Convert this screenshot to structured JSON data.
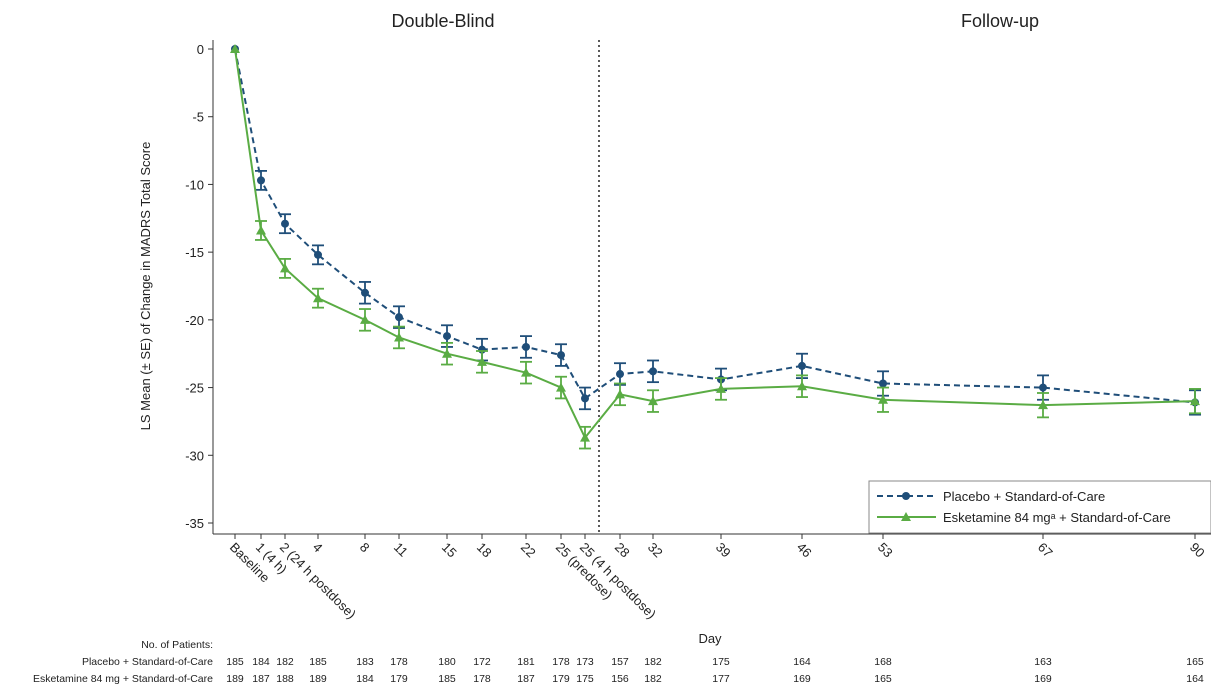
{
  "chart_data": {
    "type": "line",
    "phases": [
      "Double-Blind",
      "Follow-up"
    ],
    "ylabel": "LS Mean (± SE) of Change in MADRS Total Score",
    "xlabel": "Day",
    "ylim": [
      -35,
      0
    ],
    "yticks": [
      0,
      -5,
      -10,
      -15,
      -20,
      -25,
      -30,
      -35
    ],
    "x_ticks": [
      {
        "day": 0,
        "label": "Baseline"
      },
      {
        "day": 1,
        "label": "1 (4 h)"
      },
      {
        "day": 2,
        "label": "2 (24 h postdose)"
      },
      {
        "day": 4,
        "label": "4"
      },
      {
        "day": 8,
        "label": "8"
      },
      {
        "day": 11,
        "label": "11"
      },
      {
        "day": 15,
        "label": "15"
      },
      {
        "day": 18,
        "label": "18"
      },
      {
        "day": 22,
        "label": "22"
      },
      {
        "day": 25,
        "label": "25 (predose)"
      },
      {
        "day": 25.5,
        "label": "25 (4 h postdose)"
      },
      {
        "day": 28,
        "label": "28"
      },
      {
        "day": 32,
        "label": "32"
      },
      {
        "day": 39,
        "label": "39"
      },
      {
        "day": 46,
        "label": "46"
      },
      {
        "day": 53,
        "label": "53"
      },
      {
        "day": 67,
        "label": "67"
      },
      {
        "day": 90,
        "label": "90"
      }
    ],
    "phase_divider_day": 26.5,
    "series": [
      {
        "name": "Placebo + Standard-of-Care",
        "color": "#1f4e79",
        "marker": "circle",
        "dash": true,
        "points": [
          {
            "day": 0,
            "y": 0.0,
            "se": 0
          },
          {
            "day": 1,
            "y": -9.7,
            "se": 0.7
          },
          {
            "day": 2,
            "y": -12.9,
            "se": 0.7
          },
          {
            "day": 4,
            "y": -15.2,
            "se": 0.7
          },
          {
            "day": 8,
            "y": -18.0,
            "se": 0.8
          },
          {
            "day": 11,
            "y": -19.8,
            "se": 0.8
          },
          {
            "day": 15,
            "y": -21.2,
            "se": 0.8
          },
          {
            "day": 18,
            "y": -22.2,
            "se": 0.8
          },
          {
            "day": 22,
            "y": -22.0,
            "se": 0.8
          },
          {
            "day": 25,
            "y": -22.6,
            "se": 0.8
          },
          {
            "day": 25.5,
            "y": -25.8,
            "se": 0.8
          },
          {
            "day": 28,
            "y": -24.0,
            "se": 0.8
          },
          {
            "day": 32,
            "y": -23.8,
            "se": 0.8
          },
          {
            "day": 39,
            "y": -24.4,
            "se": 0.8
          },
          {
            "day": 46,
            "y": -23.4,
            "se": 0.9
          },
          {
            "day": 53,
            "y": -24.7,
            "se": 0.9
          },
          {
            "day": 67,
            "y": -25.0,
            "se": 0.9
          },
          {
            "day": 90,
            "y": -26.1,
            "se": 0.9
          }
        ]
      },
      {
        "name": "Esketamine 84 mgᵃ + Standard-of-Care",
        "color": "#5aac44",
        "marker": "triangle",
        "dash": false,
        "points": [
          {
            "day": 0,
            "y": 0.0,
            "se": 0
          },
          {
            "day": 1,
            "y": -13.4,
            "se": 0.7
          },
          {
            "day": 2,
            "y": -16.2,
            "se": 0.7
          },
          {
            "day": 4,
            "y": -18.4,
            "se": 0.7
          },
          {
            "day": 8,
            "y": -20.0,
            "se": 0.8
          },
          {
            "day": 11,
            "y": -21.3,
            "se": 0.8
          },
          {
            "day": 15,
            "y": -22.5,
            "se": 0.8
          },
          {
            "day": 18,
            "y": -23.1,
            "se": 0.8
          },
          {
            "day": 22,
            "y": -23.9,
            "se": 0.8
          },
          {
            "day": 25,
            "y": -25.0,
            "se": 0.8
          },
          {
            "day": 25.5,
            "y": -28.7,
            "se": 0.8
          },
          {
            "day": 28,
            "y": -25.5,
            "se": 0.8
          },
          {
            "day": 32,
            "y": -26.0,
            "se": 0.8
          },
          {
            "day": 39,
            "y": -25.1,
            "se": 0.8
          },
          {
            "day": 46,
            "y": -24.9,
            "se": 0.8
          },
          {
            "day": 53,
            "y": -25.9,
            "se": 0.9
          },
          {
            "day": 67,
            "y": -26.3,
            "se": 0.9
          },
          {
            "day": 90,
            "y": -26.0,
            "se": 0.9
          }
        ]
      }
    ],
    "patients_table": {
      "title": "No. of Patients:",
      "rows": [
        {
          "label": "Placebo + Standard-of-Care",
          "counts": [
            185,
            184,
            182,
            185,
            183,
            178,
            180,
            172,
            181,
            178,
            173,
            157,
            182,
            175,
            164,
            168,
            163,
            165
          ]
        },
        {
          "label": "Esketamine 84 mg + Standard-of-Care",
          "counts": [
            189,
            187,
            188,
            189,
            184,
            179,
            185,
            178,
            187,
            179,
            175,
            156,
            182,
            177,
            169,
            165,
            169,
            164
          ]
        }
      ]
    },
    "legend_position": "bottom-right"
  }
}
